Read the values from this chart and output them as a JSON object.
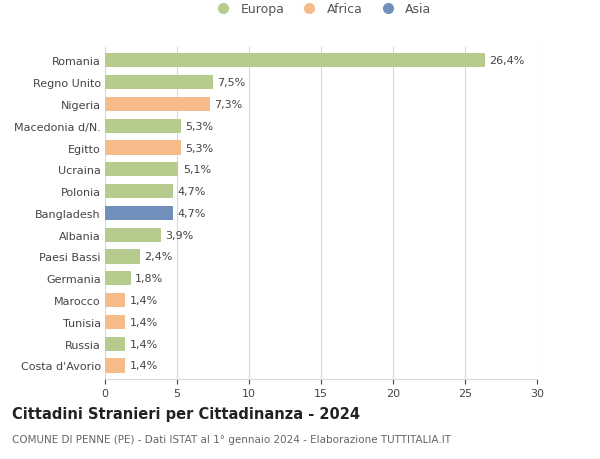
{
  "countries": [
    "Romania",
    "Regno Unito",
    "Nigeria",
    "Macedonia d/N.",
    "Egitto",
    "Ucraina",
    "Polonia",
    "Bangladesh",
    "Albania",
    "Paesi Bassi",
    "Germania",
    "Marocco",
    "Tunisia",
    "Russia",
    "Costa d'Avorio"
  ],
  "values": [
    26.4,
    7.5,
    7.3,
    5.3,
    5.3,
    5.1,
    4.7,
    4.7,
    3.9,
    2.4,
    1.8,
    1.4,
    1.4,
    1.4,
    1.4
  ],
  "labels": [
    "26,4%",
    "7,5%",
    "7,3%",
    "5,3%",
    "5,3%",
    "5,1%",
    "4,7%",
    "4,7%",
    "3,9%",
    "2,4%",
    "1,8%",
    "1,4%",
    "1,4%",
    "1,4%",
    "1,4%"
  ],
  "continents": [
    "Europa",
    "Europa",
    "Africa",
    "Europa",
    "Africa",
    "Europa",
    "Europa",
    "Asia",
    "Europa",
    "Europa",
    "Europa",
    "Africa",
    "Africa",
    "Europa",
    "Africa"
  ],
  "colors": {
    "Europa": "#b5cc8e",
    "Africa": "#f5bc8a",
    "Asia": "#7090bb"
  },
  "legend_labels": [
    "Europa",
    "Africa",
    "Asia"
  ],
  "title": "Cittadini Stranieri per Cittadinanza - 2024",
  "subtitle": "COMUNE DI PENNE (PE) - Dati ISTAT al 1° gennaio 2024 - Elaborazione TUTTITALIA.IT",
  "xlim": [
    0,
    30
  ],
  "xticks": [
    0,
    5,
    10,
    15,
    20,
    25,
    30
  ],
  "background_color": "#ffffff",
  "grid_color": "#d8d8d8",
  "bar_height": 0.65,
  "label_fontsize": 8,
  "tick_fontsize": 8,
  "title_fontsize": 10.5,
  "subtitle_fontsize": 7.5
}
